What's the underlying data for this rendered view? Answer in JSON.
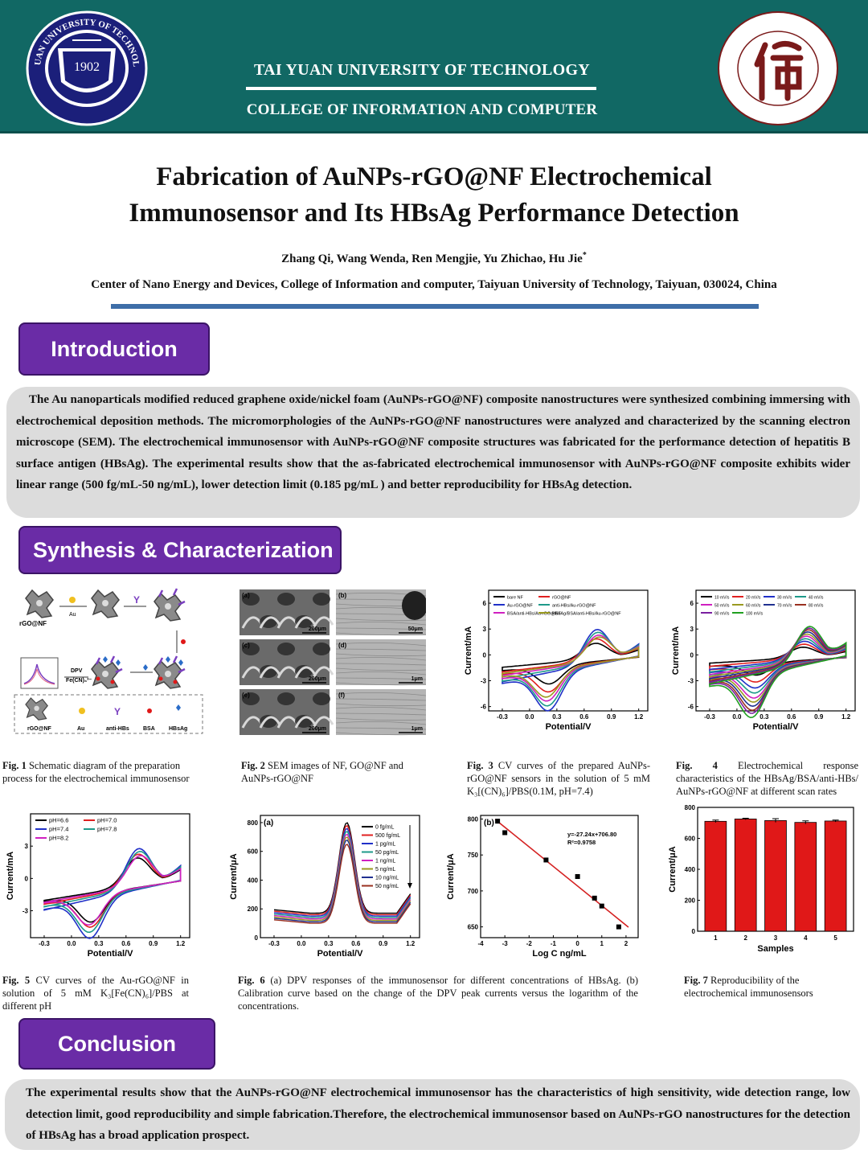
{
  "header": {
    "university": "TAI YUAN UNIVERSITY OF TECHNOLOGY",
    "college": "COLLEGE OF INFORMATION AND COMPUTER",
    "seal_year": "1902",
    "seal_ring_text": "TAIYUAN UNIVERSITY OF TECHNOLOGY"
  },
  "title": {
    "line1": "Fabrication of AuNPs-rGO@NF Electrochemical",
    "line2": "Immunosensor and Its HBsAg Performance Detection",
    "authors": "Zhang Qi, Wang Wenda, Ren Mengjie, Yu Zhichao, Hu Jie",
    "authors_mark": "*",
    "affiliation": "Center of  Nano Energy and Devices, College of Information and computer, Taiyuan University of Technology, Taiyuan, 030024, China"
  },
  "introduction": {
    "heading": "Introduction",
    "text": "The Au nanoparticals modified reduced graphene oxide/nickel foam (AuNPs-rGO@NF) composite nanostructures were synthesized combining immersing with electrochemical deposition methods. The micromorphologies of the AuNPs-rGO@NF nanostructures were analyzed and characterized by the scanning electron microscope (SEM). The electrochemical immunosensor with AuNPs-rGO@NF composite structures was fabricated for the performance detection of hepatitis B surface antigen (HBsAg). The experimental results show that the as-fabricated electrochemical immunosensor with AuNPs-rGO@NF composite exhibits wider linear range (500 fg/mL-50 ng/mL), lower detection limit (0.185 pg/mL ) and better reproducibility for HBsAg detection."
  },
  "synthesis": {
    "heading": "Synthesis & Characterization",
    "schematic": {
      "labels": [
        "rGO@NF",
        "Au",
        "DPV",
        "Fe(CN)₆³⁻"
      ],
      "legend": [
        "rGO@NF",
        "Au",
        "anti-HBs",
        "BSA",
        "HBsAg"
      ]
    },
    "sem_panels": [
      {
        "tag": "(a)",
        "scale": "200μm"
      },
      {
        "tag": "(b)",
        "scale": "50μm"
      },
      {
        "tag": "(c)",
        "scale": "200μm"
      },
      {
        "tag": "(d)",
        "scale": "1μm"
      },
      {
        "tag": "(e)",
        "scale": "200μm"
      },
      {
        "tag": "(f)",
        "scale": "1μm"
      }
    ],
    "captions": {
      "fig1": {
        "label": "Fig. 1",
        "text": "Schematic diagram of the preparation process for the electrochemical immunosensor"
      },
      "fig2": {
        "label": "Fig. 2",
        "text": "SEM images of NF, GO@NF and AuNPs-rGO@NF"
      },
      "fig3": {
        "label": "Fig. 3",
        "text": "CV curves of the prepared AuNPs-rGO@NF sensors in the solution of 5 mM K₃[(CN)₆]/PBS(0.1M, pH=7.4)"
      },
      "fig4": {
        "label": "Fig. 4",
        "text": "Electrochemical response characteristics of the HBsAg/BSA/anti-HBs/ AuNPs-rGO@NF at different scan rates"
      },
      "fig5": {
        "label": "Fig. 5",
        "text": "CV curves of  the Au-rGO@NF in solution of  5 mM  K₃[Fe(CN)₆]/PBS at different pH"
      },
      "fig6": {
        "label": "Fig. 6",
        "text": "(a) DPV responses of the immunosensor for different concentrations of HBsAg. (b) Calibration curve based on the change of the DPV peak currents versus the logarithm of the concentrations."
      },
      "fig7": {
        "label": "Fig. 7",
        "text": "Reproducibility of the electrochemical immunosensors"
      }
    }
  },
  "conclusion": {
    "heading": "Conclusion",
    "text": "The experimental results show that the AuNPs-rGO@NF electrochemical immunosensor has the characteristics of high sensitivity, wide detection range, low detection limit, good reproducibility and simple fabrication.Therefore, the electrochemical immunosensor based on AuNPs-rGO nanostructures for the detection of HBsAg has a broad application prospect."
  },
  "chart_data": [
    {
      "id": "fig3",
      "type": "line",
      "xlabel": "Potential/V",
      "ylabel": "Current/mA",
      "xlim": [
        -0.45,
        1.3
      ],
      "ylim": [
        -6.5,
        7.5
      ],
      "xticks": [
        -0.3,
        0.0,
        0.3,
        0.6,
        0.9,
        1.2
      ],
      "yticks": [
        -6,
        -3,
        0,
        3,
        6
      ],
      "legend_position": "top-left",
      "series": [
        {
          "name": "bare NF",
          "color": "#000000",
          "peak": 2.4,
          "trough": -2.6
        },
        {
          "name": "rGO@NF",
          "color": "#e02020",
          "peak": 3.3,
          "trough": -3.4
        },
        {
          "name": "Au-rGO@NF",
          "color": "#2030c8",
          "peak": 5.2,
          "trough": -5.3
        },
        {
          "name": "anti-HBs/Au-rGO@NF",
          "color": "#1e9a8a",
          "peak": 4.6,
          "trough": -4.8
        },
        {
          "name": "BSA/anti-HBs/Au-rGO@NF",
          "color": "#d020c0",
          "peak": 4.0,
          "trough": -4.3
        },
        {
          "name": "HBsAg/BSA/anti-HBs/Au-rGO@NF",
          "color": "#9a9a20",
          "peak": 3.6,
          "trough": -3.9
        }
      ]
    },
    {
      "id": "fig4",
      "type": "line",
      "xlabel": "Potential/V",
      "ylabel": "Current/mA",
      "xlim": [
        -0.45,
        1.3
      ],
      "ylim": [
        -6.5,
        7.5
      ],
      "xticks": [
        -0.3,
        0.0,
        0.3,
        0.6,
        0.9,
        1.2
      ],
      "yticks": [
        -6,
        -3,
        0,
        3,
        6
      ],
      "legend_position": "top",
      "series": [
        {
          "name": "10 mV/s",
          "color": "#000000",
          "peak": 1.6,
          "trough": -1.7
        },
        {
          "name": "20 mV/s",
          "color": "#e02020",
          "peak": 2.2,
          "trough": -2.4
        },
        {
          "name": "30 mV/s",
          "color": "#2030c8",
          "peak": 2.8,
          "trough": -3.0
        },
        {
          "name": "40 mV/s",
          "color": "#1e9a8a",
          "peak": 3.3,
          "trough": -3.5
        },
        {
          "name": "50 mV/s",
          "color": "#d020c0",
          "peak": 3.8,
          "trough": -4.0
        },
        {
          "name": "60 mV/s",
          "color": "#9a9a20",
          "peak": 4.2,
          "trough": -4.4
        },
        {
          "name": "70 mV/s",
          "color": "#203090",
          "peak": 4.6,
          "trough": -4.8
        },
        {
          "name": "80 mV/s",
          "color": "#9a3020",
          "peak": 5.0,
          "trough": -5.2
        },
        {
          "name": "90 mV/s",
          "color": "#7a20a0",
          "peak": 5.3,
          "trough": -5.5
        },
        {
          "name": "100 mV/s",
          "color": "#20a020",
          "peak": 5.6,
          "trough": -5.9
        }
      ]
    },
    {
      "id": "fig5",
      "type": "line",
      "xlabel": "Potential/V",
      "ylabel": "Current/mA",
      "xlim": [
        -0.45,
        1.3
      ],
      "ylim": [
        -5.5,
        6.0
      ],
      "xticks": [
        -0.3,
        0.0,
        0.3,
        0.6,
        0.9,
        1.2
      ],
      "yticks": [
        -3,
        0,
        3
      ],
      "legend_position": "top-left",
      "series": [
        {
          "name": "pH=6.6",
          "color": "#000000",
          "peak": 3.4,
          "trough": -3.2
        },
        {
          "name": "pH=7.0",
          "color": "#e02020",
          "peak": 4.0,
          "trough": -3.6
        },
        {
          "name": "pH=7.4",
          "color": "#2030c8",
          "peak": 4.9,
          "trough": -4.5
        },
        {
          "name": "pH=7.8",
          "color": "#1e9a8a",
          "peak": 4.4,
          "trough": -4.0
        },
        {
          "name": "pH=8.2",
          "color": "#d020c0",
          "peak": 3.7,
          "trough": -3.4
        }
      ]
    },
    {
      "id": "fig6a",
      "type": "line",
      "panel": "(a)",
      "xlabel": "Potential/V",
      "ylabel": "Current/μA",
      "xlim": [
        -0.45,
        1.3
      ],
      "ylim": [
        0,
        850
      ],
      "xticks": [
        -0.3,
        0.0,
        0.3,
        0.6,
        0.9,
        1.2
      ],
      "yticks": [
        0,
        200,
        400,
        600,
        800
      ],
      "legend_position": "right",
      "series": [
        {
          "name": "0 fg/mL",
          "color": "#000000",
          "base": 170,
          "peak": 800
        },
        {
          "name": "500 fg/mL",
          "color": "#e02020",
          "base": 160,
          "peak": 780
        },
        {
          "name": "1 pg/mL",
          "color": "#2030c8",
          "base": 150,
          "peak": 760
        },
        {
          "name": "50 pg/mL",
          "color": "#1e9a8a",
          "base": 140,
          "peak": 740
        },
        {
          "name": "1 ng/mL",
          "color": "#d020c0",
          "base": 130,
          "peak": 720
        },
        {
          "name": "5 ng/mL",
          "color": "#9a9a20",
          "base": 120,
          "peak": 700
        },
        {
          "name": "10 ng/mL",
          "color": "#203090",
          "base": 110,
          "peak": 680
        },
        {
          "name": "50 ng/mL",
          "color": "#9a3020",
          "base": 100,
          "peak": 650
        }
      ]
    },
    {
      "id": "fig6b",
      "type": "scatter",
      "panel": "(b)",
      "xlabel": "Log C ng/mL",
      "ylabel": "Current/μA",
      "xlim": [
        -4,
        2.5
      ],
      "ylim": [
        635,
        805
      ],
      "xticks": [
        -4,
        -3,
        -2,
        -1,
        0,
        1,
        2
      ],
      "yticks": [
        650,
        700,
        750,
        800
      ],
      "equation": "y=-27.24x+706.80",
      "r2": "R²=0.9758",
      "x": [
        -3.3,
        -3.0,
        -1.3,
        0.0,
        0.7,
        1.0,
        1.7
      ],
      "y": [
        797,
        781,
        743,
        720,
        690,
        679,
        650
      ],
      "fit": {
        "slope": -27.24,
        "intercept": 706.8,
        "x_range": [
          -3.4,
          2.1
        ]
      }
    },
    {
      "id": "fig7",
      "type": "bar",
      "xlabel": "Samples",
      "ylabel": "Current/μA",
      "ylim": [
        0,
        800
      ],
      "yticks": [
        0,
        200,
        400,
        600,
        800
      ],
      "categories": [
        "1",
        "2",
        "3",
        "4",
        "5"
      ],
      "values": [
        710,
        725,
        715,
        703,
        712
      ],
      "errors": [
        8,
        5,
        12,
        10,
        6
      ],
      "bar_color": "#e01818"
    }
  ]
}
